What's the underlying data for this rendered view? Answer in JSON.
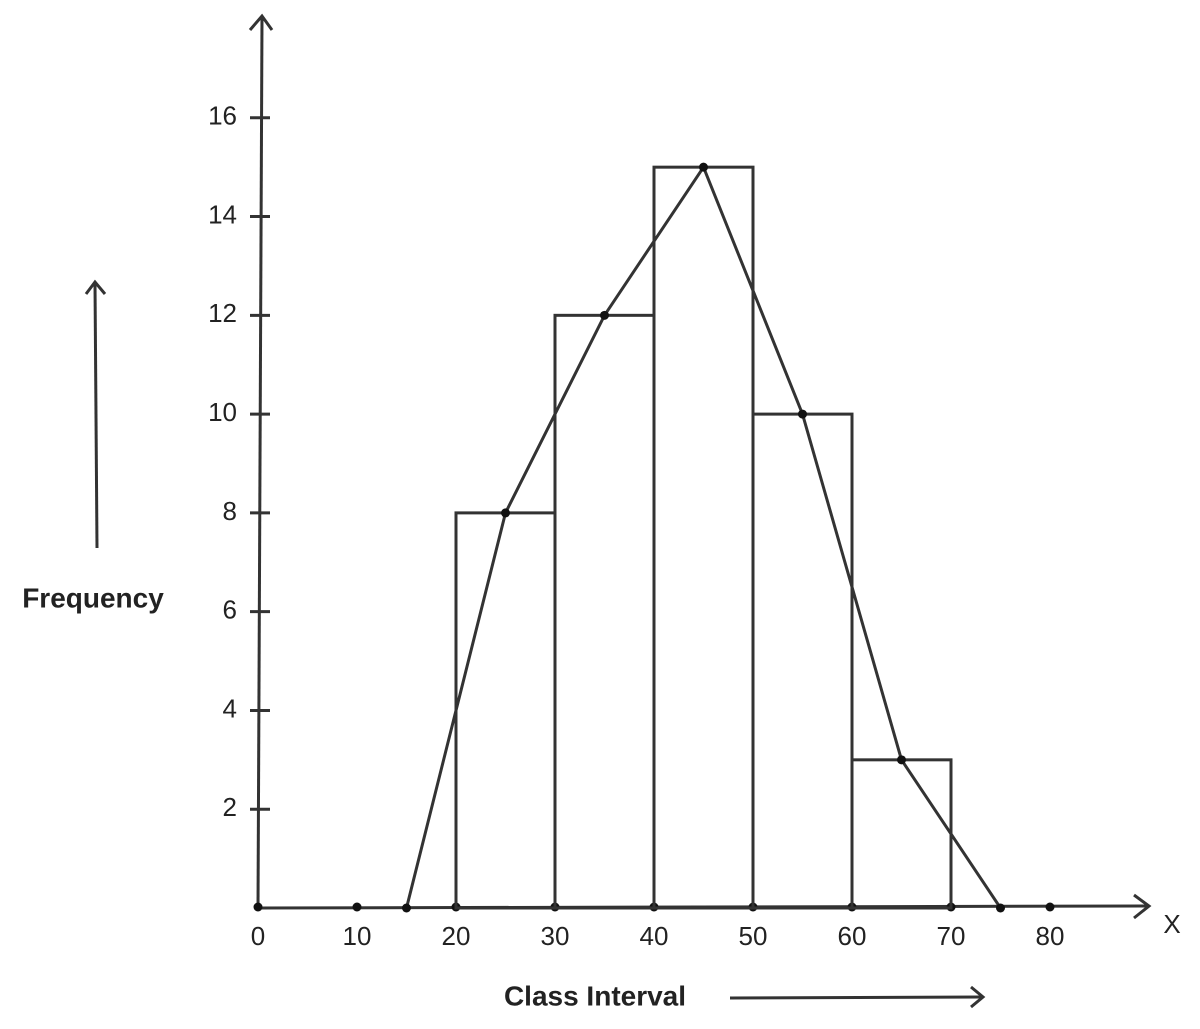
{
  "chart_data": {
    "type": "histogram",
    "xlabel": "Class Interval",
    "ylabel": "Frequency",
    "x_axis_name": "X",
    "bins": [
      20,
      30,
      40,
      50,
      60,
      70
    ],
    "values": [
      8,
      12,
      15,
      10,
      3
    ],
    "frequency_polygon": {
      "x": [
        15,
        25,
        35,
        45,
        55,
        65,
        75
      ],
      "values": [
        0,
        8,
        12,
        15,
        10,
        3,
        0
      ]
    },
    "color": "#333333",
    "xlim": [
      0,
      90
    ],
    "ylim": [
      0,
      18
    ],
    "xticks": [
      0,
      10,
      20,
      30,
      40,
      50,
      60,
      70,
      80
    ],
    "yticks": [
      2,
      4,
      6,
      8,
      10,
      12,
      14,
      16
    ]
  }
}
